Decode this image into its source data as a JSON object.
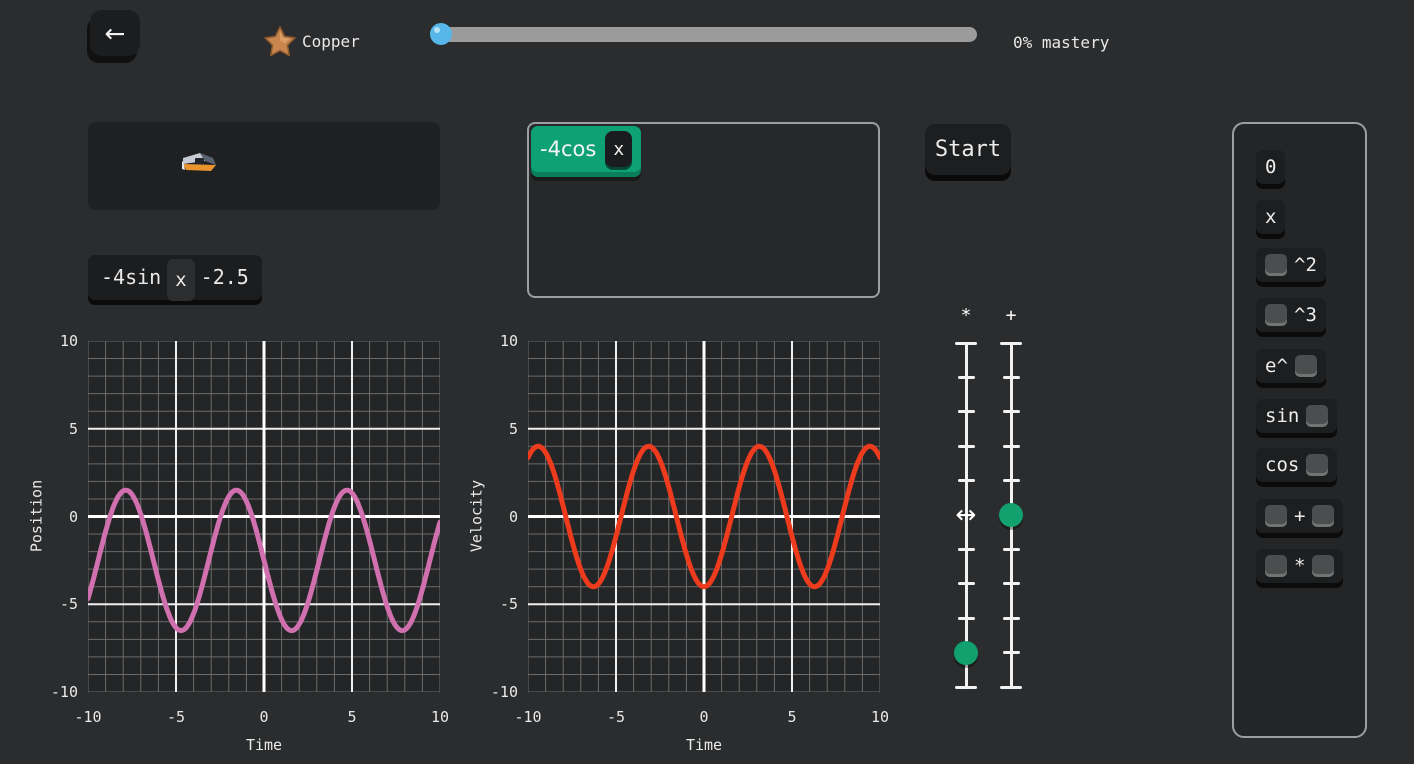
{
  "header": {
    "rank_label": "Copper",
    "mastery_label": "0% mastery",
    "progress_percent": 0
  },
  "icons": {
    "back": "←",
    "drag_horizontal": "↔",
    "star": "copper-star",
    "ship": "spaceship"
  },
  "target_expression": {
    "prefix": "-4sin",
    "variable": "x",
    "suffix": "-2.5"
  },
  "answer_area": {
    "tag_label": "-4cos",
    "tag_variable": "x"
  },
  "start_button_label": "Start",
  "sliders": [
    {
      "label": "*",
      "tick_count": 11,
      "knob_index": 9,
      "arrow_index": 5
    },
    {
      "label": "+",
      "tick_count": 11,
      "knob_index": 5,
      "arrow_index": null
    }
  ],
  "palette": {
    "items": [
      {
        "name": "zero",
        "parts": [
          {
            "text": "0"
          }
        ]
      },
      {
        "name": "x",
        "parts": [
          {
            "text": "x"
          }
        ]
      },
      {
        "name": "square",
        "parts": [
          {
            "slot": true
          },
          {
            "text": "^2"
          }
        ]
      },
      {
        "name": "cube",
        "parts": [
          {
            "slot": true
          },
          {
            "text": "^3"
          }
        ]
      },
      {
        "name": "exp",
        "parts": [
          {
            "text": "e^"
          },
          {
            "slot": true
          }
        ]
      },
      {
        "name": "sin",
        "parts": [
          {
            "text": "sin"
          },
          {
            "slot": true
          }
        ]
      },
      {
        "name": "cos",
        "parts": [
          {
            "text": "cos"
          },
          {
            "slot": true
          }
        ]
      },
      {
        "name": "add",
        "parts": [
          {
            "slot": true
          },
          {
            "text": "+"
          },
          {
            "slot": true
          }
        ]
      },
      {
        "name": "multiply",
        "parts": [
          {
            "slot": true
          },
          {
            "text": "*"
          },
          {
            "slot": true
          }
        ]
      }
    ]
  },
  "colors": {
    "accent_green": "#0da173",
    "knob_green": "#12a06e",
    "progress_knob_blue": "#57b7e8",
    "curve_position_pink": "#d170af",
    "curve_velocity_red": "#ee3a1d",
    "panel_border_gray": "#9c9ea0"
  },
  "chart_data": [
    {
      "type": "line",
      "title": "",
      "xlabel": "Time",
      "ylabel": "Position",
      "xlim": [
        -10,
        10
      ],
      "ylim": [
        -10,
        10
      ],
      "xticks": [
        -10,
        -5,
        0,
        5,
        10
      ],
      "yticks": [
        10,
        5,
        0,
        -5,
        -10
      ],
      "grid": {
        "show": true,
        "minor_step": 1,
        "major_step": 5
      },
      "series": [
        {
          "name": "position",
          "expr": "-4sin(t)-2.5",
          "fn": "sin",
          "amplitude": -4,
          "offset": -2.5,
          "color": "#d170af",
          "width": 5
        }
      ]
    },
    {
      "type": "line",
      "title": "",
      "xlabel": "Time",
      "ylabel": "Velocity",
      "xlim": [
        -10,
        10
      ],
      "ylim": [
        -10,
        10
      ],
      "xticks": [
        -10,
        -5,
        0,
        5,
        10
      ],
      "yticks": [
        10,
        5,
        0,
        -5,
        -10
      ],
      "grid": {
        "show": true,
        "minor_step": 1,
        "major_step": 5
      },
      "series": [
        {
          "name": "velocity",
          "expr": "-4cos(t)",
          "fn": "cos",
          "amplitude": -4,
          "offset": 0,
          "color": "#ee3a1d",
          "width": 5
        }
      ]
    }
  ]
}
